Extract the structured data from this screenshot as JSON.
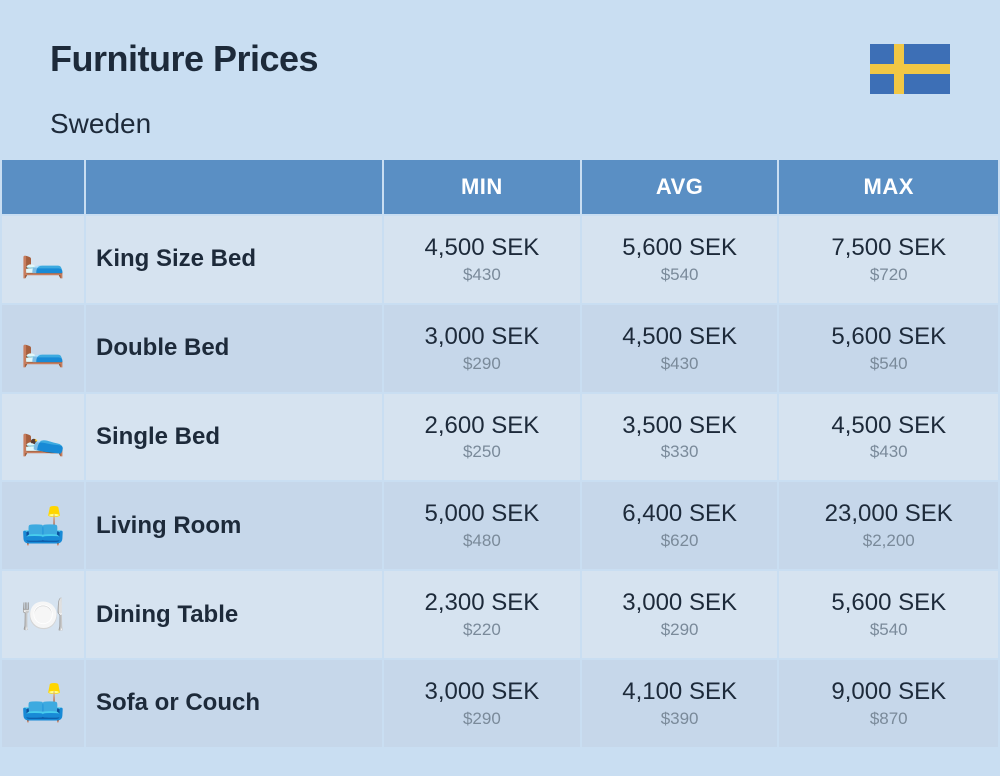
{
  "header": {
    "title": "Furniture Prices",
    "subtitle": "Sweden"
  },
  "flag": {
    "bg": "#3d6fb6",
    "cross": "#f2c744",
    "width": 80,
    "height": 50
  },
  "table": {
    "header_bg": "#5a8fc4",
    "header_fg": "#ffffff",
    "row_bg_a": "#d6e3f0",
    "row_bg_b": "#c6d7ea",
    "price_main_color": "#1d2a3a",
    "price_sub_color": "#7a8a9a",
    "columns": [
      "",
      "",
      "MIN",
      "AVG",
      "MAX"
    ],
    "rows": [
      {
        "icon": "🛏️",
        "name": "King Size Bed",
        "min": {
          "sek": "4,500 SEK",
          "usd": "$430"
        },
        "avg": {
          "sek": "5,600 SEK",
          "usd": "$540"
        },
        "max": {
          "sek": "7,500 SEK",
          "usd": "$720"
        }
      },
      {
        "icon": "🛏️",
        "name": "Double Bed",
        "min": {
          "sek": "3,000 SEK",
          "usd": "$290"
        },
        "avg": {
          "sek": "4,500 SEK",
          "usd": "$430"
        },
        "max": {
          "sek": "5,600 SEK",
          "usd": "$540"
        }
      },
      {
        "icon": "🛌",
        "name": "Single Bed",
        "min": {
          "sek": "2,600 SEK",
          "usd": "$250"
        },
        "avg": {
          "sek": "3,500 SEK",
          "usd": "$330"
        },
        "max": {
          "sek": "4,500 SEK",
          "usd": "$430"
        }
      },
      {
        "icon": "🛋️",
        "name": "Living Room",
        "min": {
          "sek": "5,000 SEK",
          "usd": "$480"
        },
        "avg": {
          "sek": "6,400 SEK",
          "usd": "$620"
        },
        "max": {
          "sek": "23,000 SEK",
          "usd": "$2,200"
        }
      },
      {
        "icon": "🍽️",
        "name": "Dining Table",
        "min": {
          "sek": "2,300 SEK",
          "usd": "$220"
        },
        "avg": {
          "sek": "3,000 SEK",
          "usd": "$290"
        },
        "max": {
          "sek": "5,600 SEK",
          "usd": "$540"
        }
      },
      {
        "icon": "🛋️",
        "name": "Sofa or Couch",
        "min": {
          "sek": "3,000 SEK",
          "usd": "$290"
        },
        "avg": {
          "sek": "4,100 SEK",
          "usd": "$390"
        },
        "max": {
          "sek": "9,000 SEK",
          "usd": "$870"
        }
      }
    ]
  }
}
